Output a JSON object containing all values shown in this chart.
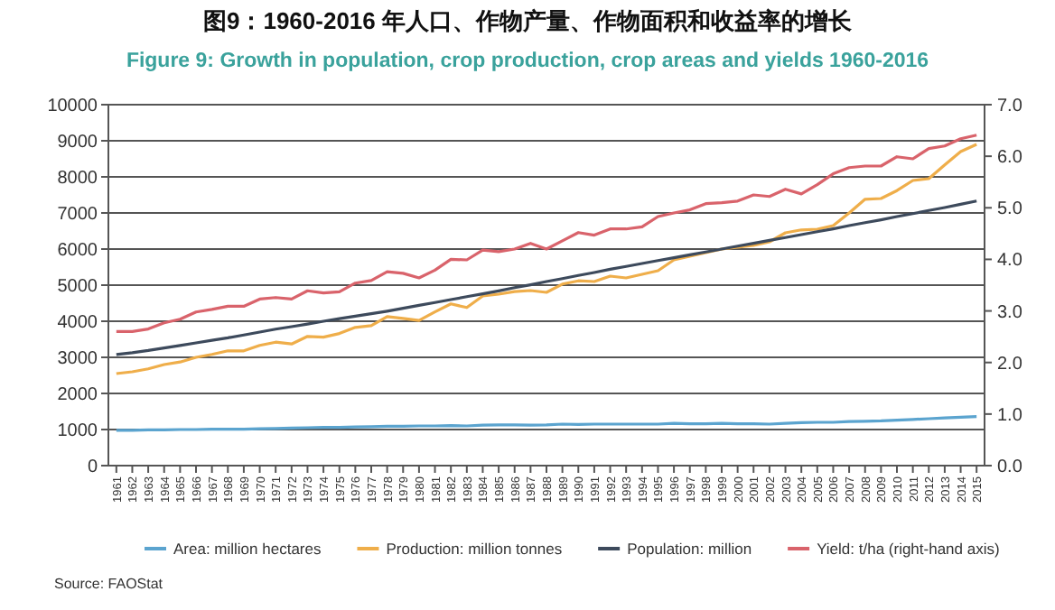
{
  "chart_data": {
    "type": "line",
    "title": "图9：1960-2016 年人口、作物产量、作物面积和收益率的增长",
    "subtitle": "Figure 9: Growth in population, crop production, crop areas and yields 1960-2016",
    "categories": [
      "1961",
      "1962",
      "1963",
      "1964",
      "1965",
      "1966",
      "1967",
      "1968",
      "1969",
      "1970",
      "1971",
      "1972",
      "1973",
      "1974",
      "1975",
      "1976",
      "1977",
      "1978",
      "1979",
      "1980",
      "1981",
      "1982",
      "1983",
      "1984",
      "1985",
      "1986",
      "1987",
      "1988",
      "1989",
      "1990",
      "1991",
      "1992",
      "1993",
      "1994",
      "1995",
      "1996",
      "1997",
      "1998",
      "1999",
      "2000",
      "2001",
      "2002",
      "2003",
      "2004",
      "2005",
      "2006",
      "2007",
      "2008",
      "2009",
      "2010",
      "2011",
      "2012",
      "2013",
      "2014",
      "2015"
    ],
    "series": [
      {
        "name": "Area: million hectares",
        "color": "#5ba4cf",
        "values": [
          980,
          980,
          990,
          990,
          1000,
          1000,
          1010,
          1010,
          1010,
          1020,
          1030,
          1040,
          1050,
          1060,
          1060,
          1070,
          1080,
          1090,
          1090,
          1100,
          1100,
          1110,
          1100,
          1120,
          1130,
          1130,
          1120,
          1130,
          1150,
          1140,
          1150,
          1150,
          1150,
          1150,
          1150,
          1170,
          1160,
          1160,
          1170,
          1160,
          1160,
          1150,
          1170,
          1190,
          1200,
          1200,
          1220,
          1230,
          1240,
          1260,
          1280,
          1300,
          1320,
          1340,
          1360
        ]
      },
      {
        "name": "Production: million tonnes",
        "color": "#efae4a",
        "values": [
          2550,
          2600,
          2680,
          2800,
          2870,
          3000,
          3080,
          3180,
          3180,
          3330,
          3420,
          3370,
          3580,
          3560,
          3660,
          3830,
          3880,
          4130,
          4080,
          4020,
          4260,
          4480,
          4380,
          4700,
          4750,
          4820,
          4850,
          4800,
          5030,
          5120,
          5100,
          5250,
          5200,
          5300,
          5400,
          5700,
          5800,
          5900,
          6000,
          6050,
          6100,
          6200,
          6450,
          6530,
          6550,
          6650,
          7000,
          7380,
          7400,
          7620,
          7900,
          7950,
          8330,
          8700,
          8900
        ]
      },
      {
        "name": "Population: million",
        "color": "#3d4a5c",
        "values": [
          3080,
          3130,
          3190,
          3260,
          3330,
          3400,
          3470,
          3540,
          3620,
          3700,
          3780,
          3850,
          3920,
          4000,
          4070,
          4140,
          4210,
          4280,
          4360,
          4440,
          4520,
          4600,
          4680,
          4760,
          4840,
          4930,
          5010,
          5100,
          5180,
          5270,
          5350,
          5440,
          5520,
          5600,
          5680,
          5760,
          5840,
          5920,
          6000,
          6080,
          6160,
          6240,
          6320,
          6400,
          6480,
          6560,
          6650,
          6730,
          6810,
          6900,
          6980,
          7070,
          7150,
          7240,
          7330
        ]
      },
      {
        "name": "Yield: t/ha (right-hand axis)",
        "color": "#d9636b",
        "axis": "y2",
        "values": [
          2.6,
          2.6,
          2.65,
          2.77,
          2.84,
          2.98,
          3.03,
          3.09,
          3.09,
          3.23,
          3.26,
          3.23,
          3.39,
          3.35,
          3.37,
          3.54,
          3.59,
          3.76,
          3.73,
          3.64,
          3.79,
          4.0,
          3.99,
          4.18,
          4.15,
          4.2,
          4.31,
          4.2,
          4.36,
          4.52,
          4.47,
          4.59,
          4.59,
          4.63,
          4.83,
          4.9,
          4.96,
          5.08,
          5.1,
          5.13,
          5.25,
          5.22,
          5.36,
          5.27,
          5.45,
          5.66,
          5.78,
          5.81,
          5.81,
          5.99,
          5.95,
          6.15,
          6.2,
          6.34,
          6.41
        ]
      }
    ],
    "ylim": [
      0,
      10000
    ],
    "yticks": [
      0,
      1000,
      2000,
      3000,
      4000,
      5000,
      6000,
      7000,
      8000,
      9000,
      10000
    ],
    "y2lim": [
      0,
      7
    ],
    "y2ticks": [
      {
        "value": 0,
        "label": "0.0"
      },
      {
        "value": 1,
        "label": "1.0"
      },
      {
        "value": 2,
        "label": "2.0"
      },
      {
        "value": 3,
        "label": "3.0"
      },
      {
        "value": 4,
        "label": "4.0"
      },
      {
        "value": 5,
        "label": "5.0"
      },
      {
        "value": 6,
        "label": "6.0"
      },
      {
        "value": 7,
        "label": "7.0"
      }
    ],
    "grid": "y",
    "legend": "bottom",
    "annotations": [
      "Source: FAOStat"
    ]
  }
}
